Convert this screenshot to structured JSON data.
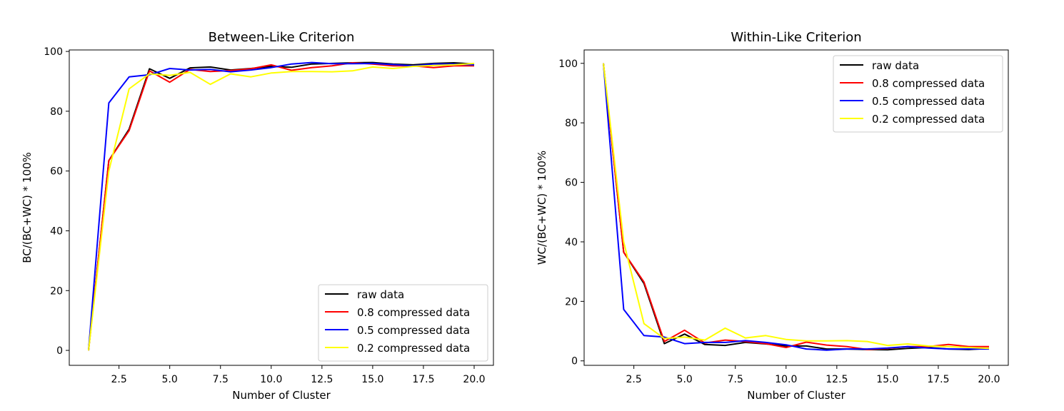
{
  "chart_data": [
    {
      "type": "line",
      "title": "Between-Like Criterion",
      "xlabel": "Number of Cluster",
      "ylabel": "BC/(BC+WC) * 100%",
      "xlim": [
        0.05,
        20.95
      ],
      "ylim": [
        -5,
        100.5
      ],
      "xticks": [
        "2.5",
        "5.0",
        "7.5",
        "10.0",
        "12.5",
        "15.0",
        "17.5",
        "20.0"
      ],
      "yticks": [
        "0",
        "20",
        "40",
        "60",
        "80",
        "100"
      ],
      "legend": "lower right",
      "grid": false,
      "x": [
        1,
        2,
        3,
        4,
        5,
        6,
        7,
        8,
        9,
        10,
        11,
        12,
        13,
        14,
        15,
        16,
        17,
        18,
        19,
        20
      ],
      "series": [
        {
          "name": "raw data",
          "color": "#000000",
          "values": [
            0,
            63.5,
            74,
            94.2,
            91,
            94.5,
            94.8,
            93.8,
            94.3,
            95,
            94.7,
            95.8,
            96,
            96.2,
            96.3,
            95.8,
            95.5,
            96,
            96.2,
            95.8
          ]
        },
        {
          "name": "0.8 compressed data",
          "color": "#ff0000",
          "values": [
            0,
            63.5,
            73.5,
            93.5,
            89.7,
            94,
            93.3,
            93.6,
            94.2,
            95.5,
            93.7,
            94.6,
            95.2,
            96.2,
            95.8,
            95.2,
            95.2,
            94.6,
            95.2,
            95.2
          ]
        },
        {
          "name": "0.5 compressed data",
          "color": "#0000ff",
          "values": [
            0,
            82.8,
            91.5,
            92.2,
            94.3,
            93.8,
            94,
            93.2,
            93.8,
            94.6,
            95.8,
            96.3,
            95.9,
            95.9,
            96,
            95.6,
            95.2,
            95.8,
            95.8,
            95.5
          ]
        },
        {
          "name": "0.2 compressed data",
          "color": "#ffff00",
          "values": [
            0,
            60,
            87.5,
            92.5,
            92,
            93,
            89,
            92.5,
            91.5,
            92.8,
            93.3,
            93.3,
            93.2,
            93.5,
            94.8,
            94.3,
            95,
            95.3,
            95.5,
            96
          ]
        }
      ]
    },
    {
      "type": "line",
      "title": "Within-Like Criterion",
      "xlabel": "Number of Cluster",
      "ylabel": "WC/(BC+WC) * 100%",
      "xlim": [
        0.05,
        20.95
      ],
      "ylim": [
        -1.5,
        104.5
      ],
      "xticks": [
        "2.5",
        "5.0",
        "7.5",
        "10.0",
        "12.5",
        "15.0",
        "17.5",
        "20.0"
      ],
      "yticks": [
        "0",
        "20",
        "40",
        "60",
        "80",
        "100"
      ],
      "legend": "upper right",
      "grid": false,
      "x": [
        1,
        2,
        3,
        4,
        5,
        6,
        7,
        8,
        9,
        10,
        11,
        12,
        13,
        14,
        15,
        16,
        17,
        18,
        19,
        20
      ],
      "series": [
        {
          "name": "raw data",
          "color": "#000000",
          "values": [
            100,
            36.5,
            26,
            5.8,
            9,
            5.5,
            5.2,
            6.2,
            5.7,
            5,
            5,
            4,
            4,
            3.8,
            3.7,
            4.2,
            4.5,
            4,
            3.8,
            4.2
          ]
        },
        {
          "name": "0.8 compressed data",
          "color": "#ff0000",
          "values": [
            100,
            36.5,
            26.5,
            6.5,
            10.3,
            6,
            7,
            6.5,
            5.8,
            4.5,
            6.3,
            5.3,
            4.8,
            3.8,
            4.2,
            4.8,
            4.8,
            5.5,
            4.8,
            4.8
          ]
        },
        {
          "name": "0.5 compressed data",
          "color": "#0000ff",
          "values": [
            100,
            17.3,
            8.5,
            8,
            5.8,
            6.2,
            6.2,
            6.8,
            6.2,
            5.4,
            4,
            3.6,
            4,
            4,
            4.3,
            4.8,
            4.3,
            4,
            4,
            4
          ]
        },
        {
          "name": "0.2 compressed data",
          "color": "#ffff00",
          "values": [
            100,
            40,
            12.5,
            7.5,
            8,
            7,
            11,
            7.7,
            8.5,
            7.2,
            6.7,
            6.7,
            6.8,
            6.5,
            5.2,
            5.7,
            5,
            4.8,
            4.5,
            4.2
          ]
        }
      ]
    }
  ]
}
